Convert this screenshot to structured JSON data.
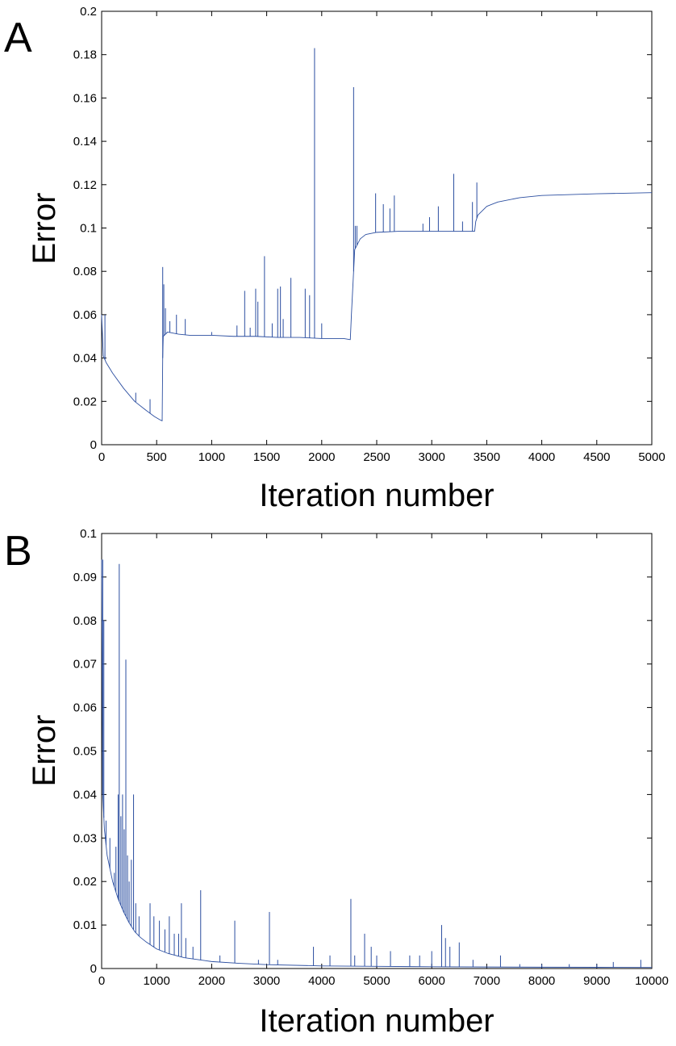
{
  "chart_data": [
    {
      "type": "line",
      "panel_label": "A",
      "xlabel": "Iteration number",
      "ylabel": "Error",
      "xlim": [
        0,
        5000
      ],
      "ylim": [
        0,
        0.2
      ],
      "xticks": [
        0,
        500,
        1000,
        1500,
        2000,
        2500,
        3000,
        3500,
        4000,
        4500,
        5000
      ],
      "yticks": [
        0,
        0.02,
        0.04,
        0.06,
        0.08,
        0.1,
        0.12,
        0.14,
        0.16,
        0.18,
        0.2
      ],
      "xtick_labels": [
        "0",
        "500",
        "1000",
        "1500",
        "2000",
        "2500",
        "3000",
        "3500",
        "4000",
        "4500",
        "5000"
      ],
      "ytick_labels": [
        "0",
        "0.02",
        "0.04",
        "0.06",
        "0.08",
        "0.1",
        "0.12",
        "0.14",
        "0.16",
        "0.18",
        "0.2"
      ],
      "grid": false,
      "line_color": "#2b4ea0",
      "series": [
        {
          "values_x": [
            0,
            15,
            40,
            100,
            200,
            300,
            400,
            480,
            530,
            550,
            555,
            560,
            600,
            700,
            800,
            1000,
            1200,
            1400,
            1600,
            1800,
            2000,
            2200,
            2260,
            2270,
            2280,
            2300,
            2350,
            2400,
            2500,
            2700,
            3000,
            3200,
            3390,
            3400,
            3420,
            3500,
            3600,
            3800,
            4000,
            4500,
            5000
          ],
          "values_y": [
            0.06,
            0.041,
            0.038,
            0.033,
            0.026,
            0.02,
            0.016,
            0.013,
            0.0115,
            0.011,
            0.04,
            0.05,
            0.052,
            0.051,
            0.0505,
            0.0505,
            0.05,
            0.05,
            0.0495,
            0.0495,
            0.049,
            0.049,
            0.0485,
            0.06,
            0.07,
            0.09,
            0.095,
            0.097,
            0.098,
            0.0985,
            0.0985,
            0.0985,
            0.0985,
            0.103,
            0.106,
            0.11,
            0.112,
            0.114,
            0.115,
            0.1158,
            0.1163
          ]
        }
      ],
      "spikes": [
        {
          "x": 30,
          "y": 0.06
        },
        {
          "x": 310,
          "y": 0.024
        },
        {
          "x": 440,
          "y": 0.021
        },
        {
          "x": 555,
          "y": 0.082
        },
        {
          "x": 565,
          "y": 0.074
        },
        {
          "x": 580,
          "y": 0.063
        },
        {
          "x": 620,
          "y": 0.057
        },
        {
          "x": 680,
          "y": 0.06
        },
        {
          "x": 760,
          "y": 0.058
        },
        {
          "x": 1000,
          "y": 0.052
        },
        {
          "x": 1230,
          "y": 0.055
        },
        {
          "x": 1300,
          "y": 0.071
        },
        {
          "x": 1350,
          "y": 0.054
        },
        {
          "x": 1400,
          "y": 0.072
        },
        {
          "x": 1420,
          "y": 0.066
        },
        {
          "x": 1480,
          "y": 0.087
        },
        {
          "x": 1550,
          "y": 0.056
        },
        {
          "x": 1600,
          "y": 0.072
        },
        {
          "x": 1625,
          "y": 0.073
        },
        {
          "x": 1650,
          "y": 0.058
        },
        {
          "x": 1720,
          "y": 0.077
        },
        {
          "x": 1850,
          "y": 0.072
        },
        {
          "x": 1890,
          "y": 0.069
        },
        {
          "x": 1935,
          "y": 0.183
        },
        {
          "x": 2000,
          "y": 0.056
        },
        {
          "x": 2290,
          "y": 0.165
        },
        {
          "x": 2305,
          "y": 0.101
        },
        {
          "x": 2320,
          "y": 0.101
        },
        {
          "x": 2490,
          "y": 0.116
        },
        {
          "x": 2560,
          "y": 0.111
        },
        {
          "x": 2620,
          "y": 0.109
        },
        {
          "x": 2660,
          "y": 0.115
        },
        {
          "x": 2920,
          "y": 0.102
        },
        {
          "x": 2980,
          "y": 0.105
        },
        {
          "x": 3060,
          "y": 0.11
        },
        {
          "x": 3200,
          "y": 0.125
        },
        {
          "x": 3280,
          "y": 0.103
        },
        {
          "x": 3370,
          "y": 0.112
        },
        {
          "x": 3410,
          "y": 0.121
        }
      ]
    },
    {
      "type": "line",
      "panel_label": "B",
      "xlabel": "Iteration number",
      "ylabel": "Error",
      "xlim": [
        0,
        10000
      ],
      "ylim": [
        0,
        0.1
      ],
      "xticks": [
        0,
        1000,
        2000,
        3000,
        4000,
        5000,
        6000,
        7000,
        8000,
        9000,
        10000
      ],
      "yticks": [
        0,
        0.01,
        0.02,
        0.03,
        0.04,
        0.05,
        0.06,
        0.07,
        0.08,
        0.09,
        0.1
      ],
      "xtick_labels": [
        "0",
        "1000",
        "2000",
        "3000",
        "4000",
        "5000",
        "6000",
        "7000",
        "8000",
        "9000",
        "10000"
      ],
      "ytick_labels": [
        "0",
        "0.01",
        "0.02",
        "0.03",
        "0.04",
        "0.05",
        "0.06",
        "0.07",
        "0.08",
        "0.09",
        "0.1"
      ],
      "grid": false,
      "line_color": "#2b4ea0",
      "series": [
        {
          "values_x": [
            0,
            20,
            50,
            100,
            200,
            300,
            400,
            500,
            600,
            700,
            800,
            1000,
            1200,
            1500,
            2000,
            2500,
            3000,
            4000,
            5000,
            6000,
            7000,
            8000,
            9000,
            10000
          ],
          "values_y": [
            0.094,
            0.04,
            0.032,
            0.026,
            0.02,
            0.016,
            0.013,
            0.0105,
            0.0085,
            0.0072,
            0.0062,
            0.0045,
            0.0035,
            0.0025,
            0.0016,
            0.0012,
            0.0009,
            0.0006,
            0.0005,
            0.0004,
            0.00035,
            0.0003,
            0.00028,
            0.00025
          ]
        }
      ],
      "spikes": [
        {
          "x": 20,
          "y": 0.094
        },
        {
          "x": 40,
          "y": 0.08
        },
        {
          "x": 80,
          "y": 0.034
        },
        {
          "x": 150,
          "y": 0.03
        },
        {
          "x": 230,
          "y": 0.022
        },
        {
          "x": 260,
          "y": 0.028
        },
        {
          "x": 300,
          "y": 0.04
        },
        {
          "x": 320,
          "y": 0.093
        },
        {
          "x": 350,
          "y": 0.035
        },
        {
          "x": 380,
          "y": 0.04
        },
        {
          "x": 410,
          "y": 0.032
        },
        {
          "x": 440,
          "y": 0.071
        },
        {
          "x": 470,
          "y": 0.026
        },
        {
          "x": 500,
          "y": 0.02
        },
        {
          "x": 540,
          "y": 0.025
        },
        {
          "x": 580,
          "y": 0.04
        },
        {
          "x": 620,
          "y": 0.015
        },
        {
          "x": 680,
          "y": 0.012
        },
        {
          "x": 880,
          "y": 0.015
        },
        {
          "x": 950,
          "y": 0.012
        },
        {
          "x": 1050,
          "y": 0.011
        },
        {
          "x": 1150,
          "y": 0.009
        },
        {
          "x": 1230,
          "y": 0.012
        },
        {
          "x": 1320,
          "y": 0.008
        },
        {
          "x": 1400,
          "y": 0.008
        },
        {
          "x": 1450,
          "y": 0.015
        },
        {
          "x": 1530,
          "y": 0.007
        },
        {
          "x": 1660,
          "y": 0.005
        },
        {
          "x": 1800,
          "y": 0.018
        },
        {
          "x": 2150,
          "y": 0.003
        },
        {
          "x": 2420,
          "y": 0.011
        },
        {
          "x": 2850,
          "y": 0.002
        },
        {
          "x": 3050,
          "y": 0.013
        },
        {
          "x": 3200,
          "y": 0.002
        },
        {
          "x": 3850,
          "y": 0.005
        },
        {
          "x": 4150,
          "y": 0.003
        },
        {
          "x": 4530,
          "y": 0.016
        },
        {
          "x": 4600,
          "y": 0.003
        },
        {
          "x": 4780,
          "y": 0.008
        },
        {
          "x": 4900,
          "y": 0.005
        },
        {
          "x": 5000,
          "y": 0.003
        },
        {
          "x": 5250,
          "y": 0.004
        },
        {
          "x": 5600,
          "y": 0.003
        },
        {
          "x": 5780,
          "y": 0.003
        },
        {
          "x": 6000,
          "y": 0.004
        },
        {
          "x": 6180,
          "y": 0.01
        },
        {
          "x": 6250,
          "y": 0.007
        },
        {
          "x": 6330,
          "y": 0.005
        },
        {
          "x": 6500,
          "y": 0.006
        },
        {
          "x": 6750,
          "y": 0.002
        },
        {
          "x": 7250,
          "y": 0.003
        },
        {
          "x": 7600,
          "y": 0.001
        },
        {
          "x": 8000,
          "y": 0.001
        },
        {
          "x": 8500,
          "y": 0.001
        },
        {
          "x": 9000,
          "y": 0.001
        },
        {
          "x": 9300,
          "y": 0.0015
        },
        {
          "x": 9800,
          "y": 0.002
        }
      ]
    }
  ]
}
